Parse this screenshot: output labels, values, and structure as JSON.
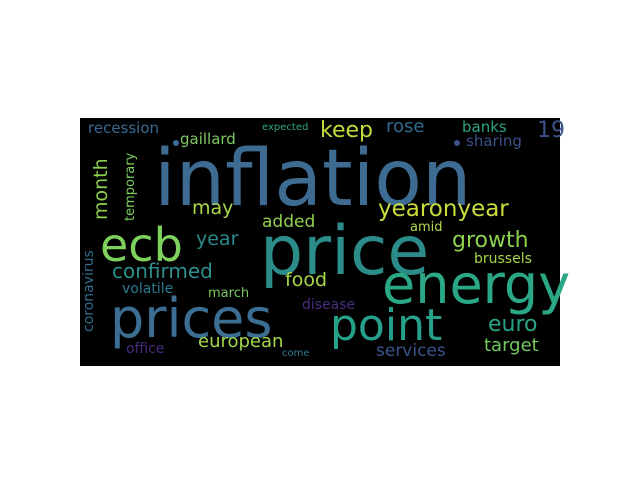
{
  "colors": {
    "background": "#000000",
    "page": "#ffffff",
    "palette": [
      "#440154",
      "#3b518b",
      "#2c718e",
      "#21908d",
      "#27ad81",
      "#5cc863",
      "#aadc32"
    ]
  },
  "words": [
    {
      "text": "inflation",
      "color": "#3e6b91",
      "orientation": "horizontal"
    },
    {
      "text": "price",
      "color": "#2c8c8a",
      "orientation": "horizontal"
    },
    {
      "text": "energy",
      "color": "#2aa784",
      "orientation": "horizontal"
    },
    {
      "text": "prices",
      "color": "#3b6e92",
      "orientation": "horizontal"
    },
    {
      "text": "ecb",
      "color": "#7fd15e",
      "orientation": "horizontal"
    },
    {
      "text": "point",
      "color": "#25a08a",
      "orientation": "horizontal"
    },
    {
      "text": "yearonyear",
      "color": "#c8dd3c",
      "orientation": "horizontal"
    },
    {
      "text": "growth",
      "color": "#8cd24e",
      "orientation": "horizontal"
    },
    {
      "text": "keep",
      "color": "#bfdc3e",
      "orientation": "horizontal"
    },
    {
      "text": "month",
      "color": "#8dd050",
      "orientation": "vertical"
    },
    {
      "text": "confirmed",
      "color": "#2d8f8c",
      "orientation": "horizontal"
    },
    {
      "text": "may",
      "color": "#a8d84a",
      "orientation": "horizontal"
    },
    {
      "text": "year",
      "color": "#2c8a8b",
      "orientation": "horizontal"
    },
    {
      "text": "added",
      "color": "#8fd24e",
      "orientation": "horizontal"
    },
    {
      "text": "food",
      "color": "#a6d749",
      "orientation": "horizontal"
    },
    {
      "text": "euro",
      "color": "#2aa385",
      "orientation": "horizontal"
    },
    {
      "text": "european",
      "color": "#a3d64c",
      "orientation": "horizontal"
    },
    {
      "text": "target",
      "color": "#73c95d",
      "orientation": "horizontal"
    },
    {
      "text": "services",
      "color": "#39558c",
      "orientation": "horizontal"
    },
    {
      "text": "19",
      "color": "#3b528b",
      "orientation": "horizontal"
    },
    {
      "text": "rose",
      "color": "#30688e",
      "orientation": "horizontal"
    },
    {
      "text": "banks",
      "color": "#2ea37f",
      "orientation": "horizontal"
    },
    {
      "text": "sharing",
      "color": "#3b528b",
      "orientation": "horizontal"
    },
    {
      "text": "recession",
      "color": "#3a6a93",
      "orientation": "horizontal"
    },
    {
      "text": "gaillard",
      "color": "#7fca62",
      "orientation": "horizontal"
    },
    {
      "text": "expected",
      "color": "#31a582",
      "orientation": "horizontal"
    },
    {
      "text": "temporary",
      "color": "#7ccf60",
      "orientation": "vertical"
    },
    {
      "text": "coronavirus",
      "color": "#2f6c8f",
      "orientation": "vertical"
    },
    {
      "text": "volatile",
      "color": "#2a7a8f",
      "orientation": "horizontal"
    },
    {
      "text": "march",
      "color": "#7bca5e",
      "orientation": "horizontal"
    },
    {
      "text": "disease",
      "color": "#482e7e",
      "orientation": "horizontal"
    },
    {
      "text": "office",
      "color": "#452c7a",
      "orientation": "horizontal"
    },
    {
      "text": "come",
      "color": "#2a7b8c",
      "orientation": "horizontal"
    },
    {
      "text": "amid",
      "color": "#b3d84e",
      "orientation": "horizontal"
    },
    {
      "text": "brussels",
      "color": "#a5d649",
      "orientation": "horizontal"
    }
  ]
}
